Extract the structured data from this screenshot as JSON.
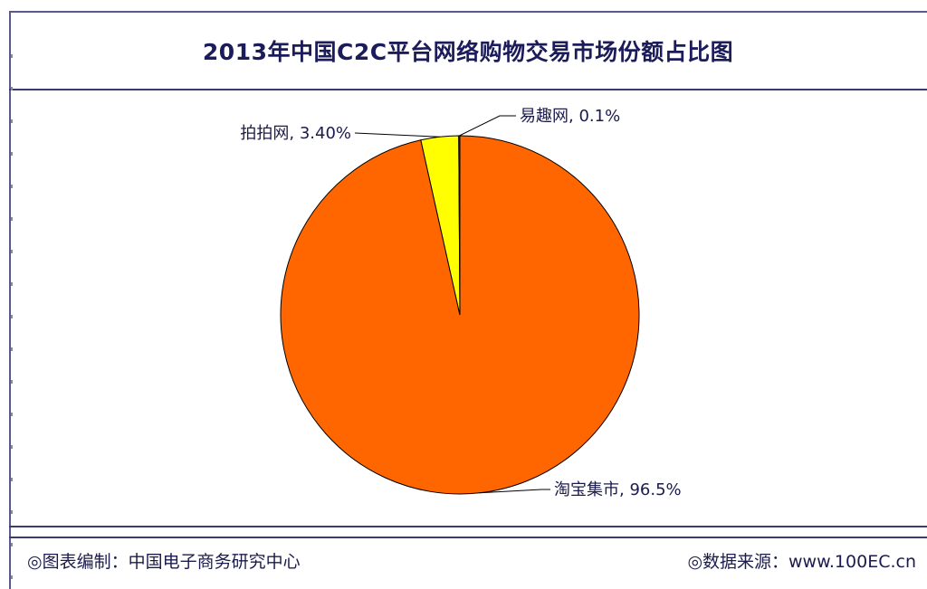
{
  "chart_data": {
    "type": "pie",
    "title": "2013年中国C2C平台网络购物交易市场份额占比图",
    "slices": [
      {
        "label": "淘宝集市, 96.5%",
        "name": "淘宝集市",
        "value": 96.5,
        "color": "#ff6600"
      },
      {
        "label": "拍拍网, 3.40%",
        "name": "拍拍网",
        "value": 3.4,
        "color": "#ffff00"
      },
      {
        "label": "易趣网, 0.1%",
        "name": "易趣网",
        "value": 0.1,
        "color": "#6b6b00"
      }
    ],
    "legend": "none"
  },
  "footer": {
    "left": "◎图表编制：中国电子商务研究中心",
    "right": "◎数据来源：www.100EC.cn"
  }
}
